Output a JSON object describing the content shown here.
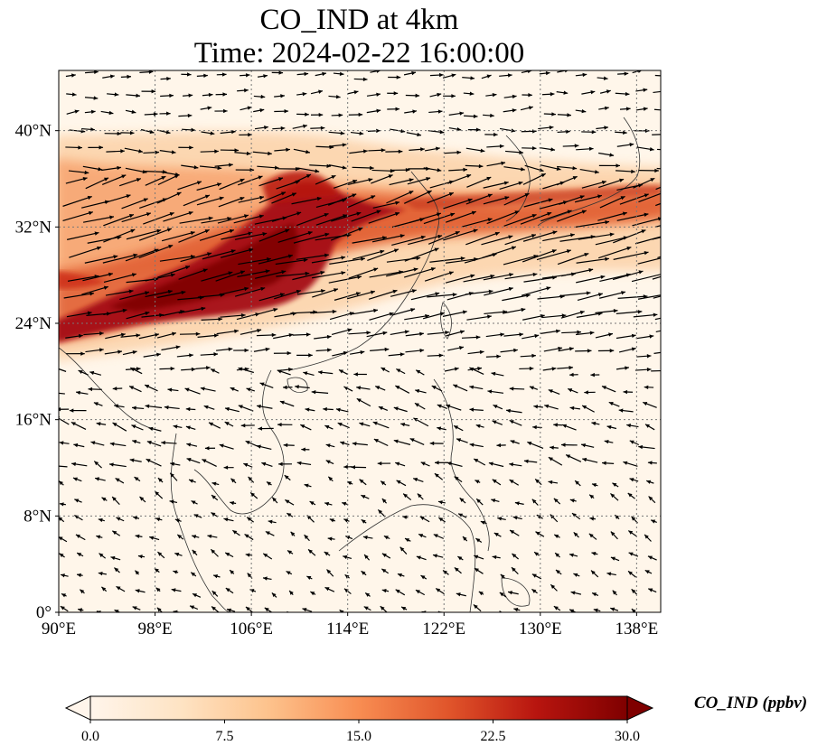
{
  "title": {
    "line1": "CO_IND at 4km",
    "line2": "Time: 2024-02-22 16:00:00"
  },
  "map": {
    "variable": "CO_IND",
    "lon_range": [
      90,
      140
    ],
    "lat_range": [
      0,
      45
    ],
    "lon_ticks": [
      "90°E",
      "98°E",
      "106°E",
      "114°E",
      "122°E",
      "130°E",
      "138°E"
    ],
    "lat_ticks": [
      "0°",
      "8°N",
      "16°N",
      "24°N",
      "32°N",
      "40°N"
    ],
    "gridlines": "dotted",
    "overlay": "wind vectors"
  },
  "colorbar": {
    "label": "CO_IND (ppbv)",
    "min": 0.0,
    "max": 30.0,
    "ticks": [
      "0.0",
      "7.5",
      "15.0",
      "22.5",
      "30.0"
    ],
    "extend": "both",
    "colormap": [
      "#fff5eb",
      "#fdd9b4",
      "#fdae6b",
      "#f3702c",
      "#d03e18",
      "#a50f15",
      "#7f0000"
    ]
  },
  "colors": {
    "background": "#fff6ea",
    "land_border": "#333333",
    "grid": "#777777",
    "arrow": "#000000"
  }
}
